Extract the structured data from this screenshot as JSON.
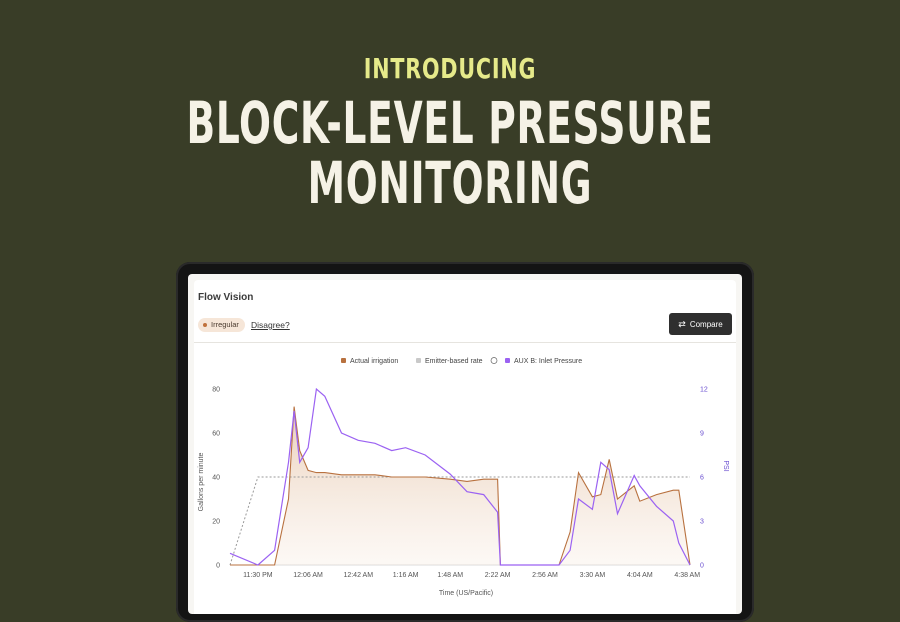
{
  "promo": {
    "kicker": "INTRODUCING",
    "title_line1": "BLOCK-LEVEL PRESSURE",
    "title_line2": "MONITORING"
  },
  "panel": {
    "title": "Flow Vision",
    "status_badge": "Irregular",
    "disagree_link": "Disagree?",
    "compare_button": "Compare"
  },
  "colors": {
    "background": "#393d27",
    "kicker": "#e6ea8a",
    "actual": "#b8713f",
    "emitter": "#b3b3b3",
    "pressure": "#9b62f2"
  },
  "chart_data": {
    "type": "line",
    "x": [
      "11:10 PM",
      "11:30 PM",
      "11:42 PM",
      "11:52 PM",
      "11:56 PM",
      "12:00 AM",
      "12:06 AM",
      "12:12 AM",
      "12:18 AM",
      "12:30 AM",
      "12:42 AM",
      "12:54 AM",
      "1:06 AM",
      "1:16 AM",
      "1:30 AM",
      "1:48 AM",
      "2:00 AM",
      "2:12 AM",
      "2:22 AM",
      "2:24 AM",
      "2:36 AM",
      "2:56 AM",
      "3:06 AM",
      "3:14 AM",
      "3:20 AM",
      "3:30 AM",
      "3:36 AM",
      "3:42 AM",
      "3:48 AM",
      "4:00 AM",
      "4:04 AM",
      "4:16 AM",
      "4:28 AM",
      "4:32 AM",
      "4:40 AM"
    ],
    "x_ticks": [
      "11:30 PM",
      "12:06 AM",
      "12:42 AM",
      "1:16 AM",
      "1:48 AM",
      "2:22 AM",
      "2:56 AM",
      "3:30 AM",
      "4:04 AM",
      "4:38 AM"
    ],
    "xlabel": "Time (US/Pacific)",
    "ylabel": "Gallons per minute",
    "y2label": "PSI",
    "ylim": [
      0,
      80
    ],
    "y_ticks": [
      0,
      20,
      40,
      60,
      80
    ],
    "y2lim": [
      0,
      12
    ],
    "y2_ticks": [
      0,
      3,
      6,
      9,
      12
    ],
    "legend_position": "top-center",
    "series": [
      {
        "name": "Actual irrigation",
        "axis": "left",
        "values": [
          0,
          0,
          0,
          30,
          72,
          52,
          43,
          42,
          42,
          41,
          41,
          41,
          40,
          40,
          40,
          39,
          38,
          39,
          39,
          0,
          0,
          0,
          0,
          15,
          42,
          31,
          32,
          48,
          30,
          36,
          29,
          32,
          34,
          34,
          0
        ]
      },
      {
        "name": "Emitter-based rate",
        "axis": "left",
        "values": [
          0,
          40,
          40,
          40,
          40,
          40,
          40,
          40,
          40,
          40,
          40,
          40,
          40,
          40,
          40,
          40,
          40,
          40,
          40,
          40,
          40,
          40,
          40,
          40,
          40,
          40,
          40,
          40,
          40,
          40,
          40,
          40,
          40,
          40,
          40
        ]
      },
      {
        "name": "AUX B: Inlet Pressure",
        "axis": "right",
        "values": [
          0.8,
          0,
          1,
          7,
          10.5,
          7,
          8,
          12,
          11.5,
          9,
          8.5,
          8.3,
          7.8,
          8,
          7.5,
          6.2,
          5,
          4.8,
          3.6,
          0,
          0,
          0,
          0,
          1,
          4.5,
          3.8,
          7,
          6.5,
          3.5,
          6.1,
          5.4,
          4,
          3,
          1.5,
          0
        ]
      }
    ]
  },
  "chart_labels": {
    "legend": [
      "Actual irrigation",
      "Emitter-based rate",
      "AUX B: Inlet Pressure"
    ]
  }
}
